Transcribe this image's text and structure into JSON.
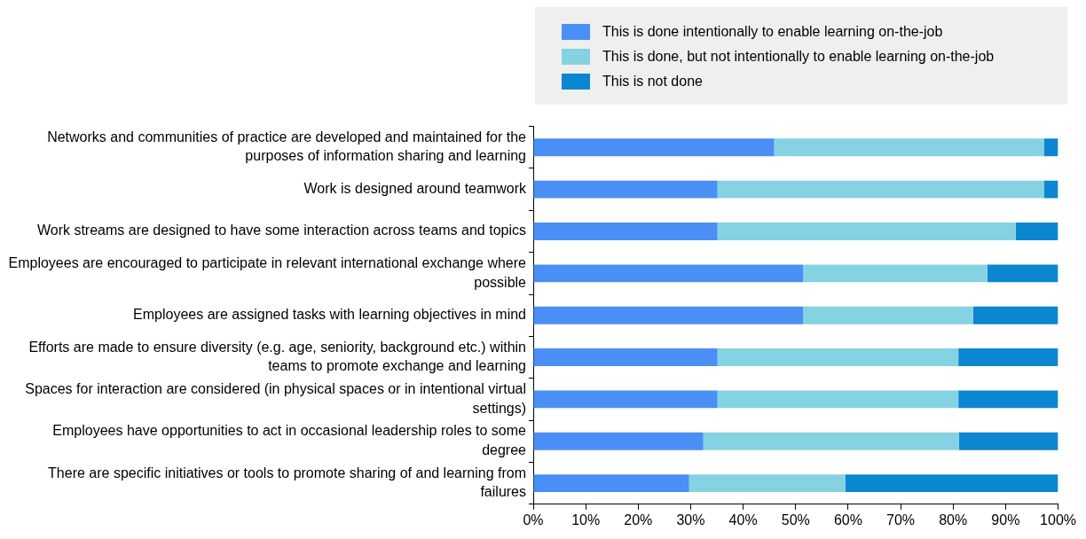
{
  "chart_data": {
    "type": "bar",
    "orientation": "horizontal",
    "stacked": true,
    "categories": [
      "Networks and communities of practice are developed and maintained for the purposes of information sharing and learning",
      "Work is designed around teamwork",
      "Work streams are designed to have some interaction across teams and topics",
      "Employees are encouraged to participate in relevant international exchange where possible",
      "Employees are assigned tasks with learning objectives in mind",
      "Efforts are made to ensure diversity (e.g. age, seniority, background etc.) within teams to promote exchange and learning",
      "Spaces for interaction are considered (in physical spaces or in intentional virtual settings)",
      "Employees have opportunities to act in occasional leadership roles to some degree",
      "There are specific initiatives or tools to promote sharing of and learning from failures"
    ],
    "series": [
      {
        "name": "This is done intentionally to enable learning on-the-job",
        "color": "#4a8ff5",
        "values": [
          45.9,
          35.1,
          35.1,
          51.4,
          51.4,
          35.1,
          35.1,
          32.4,
          29.7
        ]
      },
      {
        "name": "This is done, but not intentionally to enable learning on-the-job",
        "color": "#85d2e3",
        "values": [
          51.4,
          62.2,
          56.8,
          35.1,
          32.4,
          45.9,
          45.9,
          48.7,
          29.8
        ]
      },
      {
        "name": "This is not done",
        "color": "#0b86d1",
        "values": [
          2.7,
          2.7,
          8.1,
          13.5,
          16.2,
          19.0,
          19.0,
          18.9,
          40.5
        ]
      }
    ],
    "xlim": [
      0,
      100
    ],
    "xticks": [
      {
        "value": 0,
        "label": "0%"
      },
      {
        "value": 10,
        "label": "10%"
      },
      {
        "value": 20,
        "label": "20%"
      },
      {
        "value": 30,
        "label": "30%"
      },
      {
        "value": 40,
        "label": "40%"
      },
      {
        "value": 50,
        "label": "50%"
      },
      {
        "value": 60,
        "label": "60%"
      },
      {
        "value": 70,
        "label": "70%"
      },
      {
        "value": 80,
        "label": "80%"
      },
      {
        "value": 90,
        "label": "90%"
      },
      {
        "value": 100,
        "label": "100%"
      }
    ],
    "grid": false,
    "legend": "top right"
  }
}
